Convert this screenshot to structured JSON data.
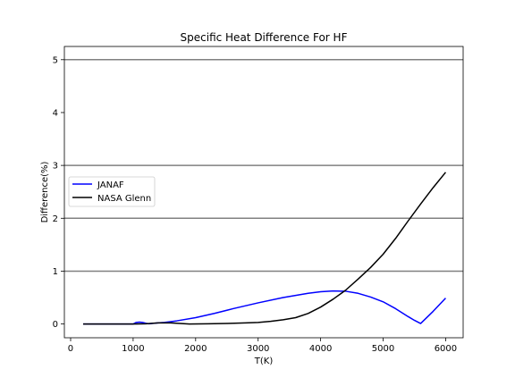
{
  "chart_data": {
    "type": "line",
    "title": "Specific Heat Difference For HF",
    "xlabel": "T(K)",
    "ylabel": "Difference(%)",
    "xlim": [
      -100,
      6280
    ],
    "ylim": [
      -0.26,
      5.25
    ],
    "xticks": [
      0,
      1000,
      2000,
      3000,
      4000,
      5000,
      6000
    ],
    "yticks": [
      0,
      1,
      2,
      3,
      4,
      5
    ],
    "hlines": [
      1,
      2,
      3,
      5
    ],
    "legend_position": "center-left",
    "series": [
      {
        "name": "JANAF",
        "color": "#0000ff",
        "x": [
          200,
          500,
          900,
          1000,
          1050,
          1100,
          1150,
          1200,
          1250,
          1300,
          1400,
          1500,
          1700,
          2000,
          2300,
          2600,
          3000,
          3400,
          3800,
          4000,
          4200,
          4400,
          4600,
          4800,
          5000,
          5200,
          5400,
          5500,
          5600,
          5800,
          6000
        ],
        "y": [
          0.0,
          0.0,
          0.0,
          0.0,
          0.03,
          0.035,
          0.03,
          0.015,
          0.005,
          0.01,
          0.02,
          0.03,
          0.06,
          0.12,
          0.2,
          0.29,
          0.4,
          0.5,
          0.58,
          0.61,
          0.625,
          0.62,
          0.58,
          0.51,
          0.42,
          0.29,
          0.14,
          0.07,
          0.01,
          0.24,
          0.49
        ]
      },
      {
        "name": "NASA Glenn",
        "color": "#000000",
        "x": [
          200,
          600,
          1000,
          1200,
          1400,
          1600,
          1900,
          2200,
          2500,
          2800,
          3000,
          3200,
          3400,
          3600,
          3800,
          4000,
          4200,
          4400,
          4600,
          4800,
          5000,
          5200,
          5400,
          5600,
          5800,
          6000
        ],
        "y": [
          0.0,
          0.0,
          0.0,
          0.005,
          0.02,
          0.02,
          0.0,
          0.005,
          0.01,
          0.02,
          0.03,
          0.05,
          0.08,
          0.12,
          0.2,
          0.32,
          0.47,
          0.64,
          0.85,
          1.07,
          1.32,
          1.62,
          1.95,
          2.27,
          2.58,
          2.87
        ]
      }
    ]
  }
}
